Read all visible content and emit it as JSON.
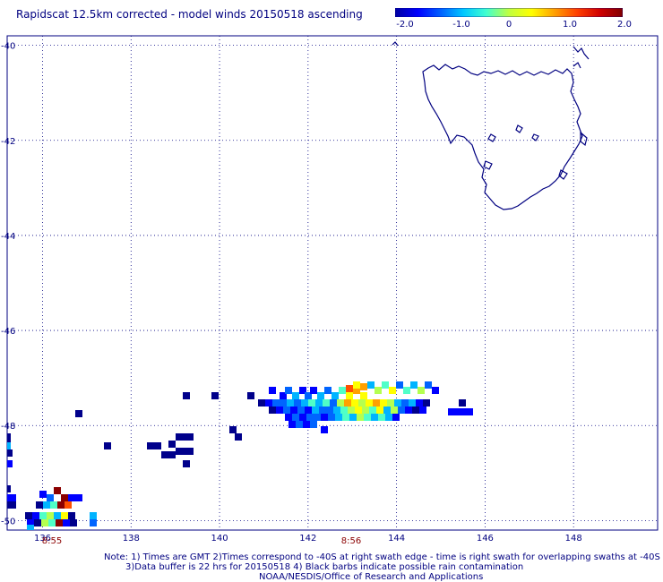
{
  "title": "Rapidscat 12.5km corrected - model winds 20150518 ascending",
  "colorbar": {
    "labels": [
      "-2.0",
      "-1.0",
      "0",
      "1.0",
      "2.0"
    ],
    "values": [
      -2.0,
      -1.0,
      0,
      1.0,
      2.0
    ],
    "colors": [
      "#0000a0",
      "#0000ff",
      "#0060ff",
      "#00c8ff",
      "#40ffd0",
      "#c0ff40",
      "#ffff00",
      "#ffa000",
      "#ff4000",
      "#d00000",
      "#800000"
    ]
  },
  "map": {
    "lon_ticks": [
      "136",
      "138",
      "140",
      "142",
      "144",
      "146",
      "148"
    ],
    "lon_values": [
      136,
      138,
      140,
      142,
      144,
      146,
      148
    ],
    "lat_ticks": [
      "-40",
      "-42",
      "-44",
      "-46",
      "-48",
      "-50"
    ],
    "lat_values": [
      -40,
      -42,
      -44,
      -46,
      -48,
      -50
    ]
  },
  "time_labels": [
    {
      "text": "8:55",
      "lon": 136.05
    },
    {
      "text": "8:56",
      "lon": 142.9
    }
  ],
  "notes": {
    "line1": "Note: 1) Times are GMT 2)Times correspond to -40S at right swath edge - time is right swath for overlapping swaths at -40S",
    "line2": "3)Data buffer is 22 hrs for 20150518 4) Black barbs indicate possible rain contamination",
    "line3": "NOAA/NESDIS/Office of Research and Applications"
  }
}
